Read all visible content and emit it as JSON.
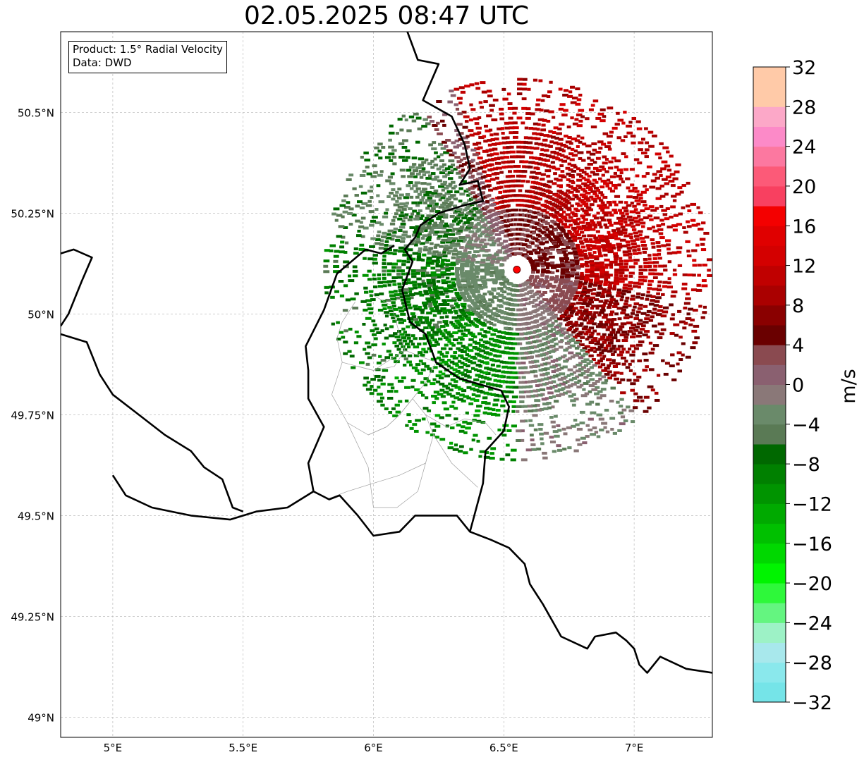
{
  "title": "02.05.2025 08:47 UTC",
  "info": {
    "product_line": "Product: 1.5° Radial Velocity",
    "data_line": "Data: DWD"
  },
  "map": {
    "lon_range": [
      4.8,
      7.3
    ],
    "lat_range": [
      48.95,
      50.7
    ],
    "lon_ticks": [
      {
        "v": 5.0,
        "label": "5°E"
      },
      {
        "v": 5.5,
        "label": "5.5°E"
      },
      {
        "v": 6.0,
        "label": "6°E"
      },
      {
        "v": 6.5,
        "label": "6.5°E"
      },
      {
        "v": 7.0,
        "label": "7°E"
      }
    ],
    "lat_ticks": [
      {
        "v": 49.0,
        "label": "49°N"
      },
      {
        "v": 49.25,
        "label": "49.25°N"
      },
      {
        "v": 49.5,
        "label": "49.5°N"
      },
      {
        "v": 49.75,
        "label": "49.75°N"
      },
      {
        "v": 50.0,
        "label": "50°N"
      },
      {
        "v": 50.25,
        "label": "50.25°N"
      },
      {
        "v": 50.5,
        "label": "50.5°N"
      }
    ],
    "radar_site": {
      "lon": 6.55,
      "lat": 50.11
    },
    "radar_marker_color": "#ff0000",
    "borders": [
      [
        [
          6.13,
          50.7
        ],
        [
          6.17,
          50.63
        ],
        [
          6.25,
          50.62
        ],
        [
          6.19,
          50.53
        ],
        [
          6.3,
          50.49
        ],
        [
          6.35,
          50.42
        ],
        [
          6.37,
          50.36
        ],
        [
          6.33,
          50.32
        ],
        [
          6.4,
          50.33
        ],
        [
          6.42,
          50.28
        ],
        [
          6.35,
          50.27
        ],
        [
          6.25,
          50.25
        ],
        [
          6.18,
          50.22
        ],
        [
          6.16,
          50.19
        ],
        [
          6.12,
          50.16
        ],
        [
          6.15,
          50.13
        ],
        [
          6.11,
          50.06
        ],
        [
          6.14,
          49.98
        ],
        [
          6.2,
          49.95
        ],
        [
          6.24,
          49.88
        ],
        [
          6.33,
          49.84
        ],
        [
          6.49,
          49.81
        ],
        [
          6.52,
          49.77
        ],
        [
          6.5,
          49.71
        ],
        [
          6.43,
          49.66
        ],
        [
          6.42,
          49.58
        ],
        [
          6.37,
          49.46
        ],
        [
          6.32,
          49.5
        ],
        [
          6.25,
          49.5
        ],
        [
          6.16,
          49.5
        ],
        [
          6.1,
          49.46
        ],
        [
          6.0,
          49.45
        ],
        [
          5.94,
          49.5
        ],
        [
          5.87,
          49.55
        ],
        [
          5.83,
          49.54
        ],
        [
          5.77,
          49.56
        ],
        [
          5.75,
          49.63
        ],
        [
          5.81,
          49.72
        ],
        [
          5.75,
          49.79
        ],
        [
          5.75,
          49.86
        ],
        [
          5.74,
          49.92
        ],
        [
          5.81,
          50.01
        ],
        [
          5.86,
          50.1
        ],
        [
          5.97,
          50.16
        ],
        [
          6.03,
          50.15
        ],
        [
          6.08,
          50.17
        ]
      ],
      [
        [
          5.0,
          49.6
        ],
        [
          5.05,
          49.55
        ],
        [
          5.15,
          49.52
        ],
        [
          5.3,
          49.5
        ],
        [
          5.45,
          49.49
        ],
        [
          5.55,
          49.51
        ],
        [
          5.67,
          49.52
        ],
        [
          5.77,
          49.56
        ]
      ],
      [
        [
          4.8,
          49.95
        ],
        [
          4.9,
          49.93
        ],
        [
          4.95,
          49.85
        ],
        [
          5.0,
          49.8
        ],
        [
          5.1,
          49.75
        ],
        [
          5.2,
          49.7
        ],
        [
          5.3,
          49.66
        ],
        [
          5.35,
          49.62
        ],
        [
          5.42,
          49.59
        ],
        [
          5.46,
          49.52
        ],
        [
          5.5,
          49.51
        ]
      ],
      [
        [
          4.8,
          50.15
        ],
        [
          4.85,
          50.16
        ],
        [
          4.92,
          50.14
        ],
        [
          4.88,
          50.08
        ],
        [
          4.83,
          50.0
        ],
        [
          4.8,
          49.97
        ]
      ],
      [
        [
          6.37,
          49.46
        ],
        [
          6.45,
          49.44
        ],
        [
          6.52,
          49.42
        ],
        [
          6.58,
          49.38
        ],
        [
          6.6,
          49.33
        ],
        [
          6.65,
          49.28
        ],
        [
          6.72,
          49.2
        ],
        [
          6.82,
          49.17
        ],
        [
          6.85,
          49.2
        ],
        [
          6.93,
          49.21
        ],
        [
          6.97,
          49.19
        ],
        [
          7.0,
          49.17
        ],
        [
          7.02,
          49.13
        ],
        [
          7.05,
          49.11
        ],
        [
          7.1,
          49.15
        ],
        [
          7.2,
          49.12
        ],
        [
          7.3,
          49.11
        ]
      ]
    ],
    "regions": [
      [
        [
          5.99,
          50.05
        ],
        [
          6.07,
          50.02
        ],
        [
          6.1,
          49.95
        ],
        [
          6.12,
          49.91
        ],
        [
          6.08,
          49.87
        ],
        [
          6.0,
          49.86
        ],
        [
          5.94,
          49.87
        ],
        [
          5.88,
          49.88
        ],
        [
          5.86,
          49.94
        ],
        [
          5.88,
          49.98
        ],
        [
          5.93,
          50.03
        ]
      ],
      [
        [
          5.88,
          49.88
        ],
        [
          5.84,
          49.8
        ],
        [
          5.9,
          49.73
        ],
        [
          5.98,
          49.7
        ],
        [
          6.05,
          49.72
        ],
        [
          6.1,
          49.75
        ],
        [
          6.15,
          49.79
        ],
        [
          6.2,
          49.83
        ],
        [
          6.24,
          49.88
        ],
        [
          6.12,
          49.91
        ],
        [
          6.0,
          49.86
        ],
        [
          5.94,
          49.87
        ]
      ],
      [
        [
          5.9,
          49.73
        ],
        [
          5.98,
          49.62
        ],
        [
          6.0,
          49.52
        ],
        [
          6.09,
          49.52
        ],
        [
          6.17,
          49.56
        ],
        [
          6.2,
          49.63
        ],
        [
          6.23,
          49.7
        ],
        [
          6.2,
          49.75
        ],
        [
          6.15,
          49.79
        ],
        [
          6.1,
          49.75
        ],
        [
          6.05,
          49.72
        ],
        [
          5.98,
          49.7
        ]
      ],
      [
        [
          6.2,
          49.75
        ],
        [
          6.28,
          49.72
        ],
        [
          6.35,
          49.74
        ],
        [
          6.43,
          49.73
        ],
        [
          6.47,
          49.7
        ]
      ],
      [
        [
          6.23,
          49.7
        ],
        [
          6.3,
          49.63
        ],
        [
          6.35,
          49.6
        ],
        [
          6.4,
          49.57
        ]
      ],
      [
        [
          5.82,
          49.54
        ],
        [
          5.9,
          49.56
        ],
        [
          6.0,
          49.58
        ],
        [
          6.1,
          49.6
        ],
        [
          6.2,
          49.63
        ]
      ]
    ],
    "velocity_field": {
      "max_range_deg": 0.48,
      "note": "Cell grid showing radial velocities; sectors listed as [azimuth_start_deg, azimuth_end_deg, velocity_m_s]",
      "sectors": [
        [
          -20,
          40,
          10
        ],
        [
          40,
          100,
          11
        ],
        [
          100,
          140,
          7
        ],
        [
          140,
          180,
          -2
        ],
        [
          180,
          230,
          -10
        ],
        [
          230,
          280,
          -8
        ],
        [
          280,
          330,
          -5
        ],
        [
          330,
          340,
          3
        ]
      ],
      "inner_gap_deg": 0.04
    }
  },
  "colorbar": {
    "unit": "m/s",
    "min": -32,
    "max": 32,
    "tick_labels": [
      "32",
      "28",
      "24",
      "20",
      "16",
      "12",
      "8",
      "4",
      "0",
      "−4",
      "−8",
      "−12",
      "−16",
      "−20",
      "−24",
      "−28",
      "−32"
    ],
    "tick_values": [
      32,
      28,
      24,
      20,
      16,
      12,
      8,
      4,
      0,
      -4,
      -8,
      -12,
      -16,
      -20,
      -24,
      -28,
      -32
    ],
    "colors_bottom_to_top": [
      "#75e4e8",
      "#8ae8ec",
      "#a8e8ec",
      "#9df2c6",
      "#64f580",
      "#2ef83a",
      "#00f400",
      "#00d800",
      "#00c000",
      "#00aa00",
      "#009400",
      "#008000",
      "#006800",
      "#5a7a55",
      "#6a8a6a",
      "#8a7878",
      "#8a6070",
      "#8a4a50",
      "#6a0000",
      "#8a0000",
      "#aa0000",
      "#c00000",
      "#d40000",
      "#e00000",
      "#f40000",
      "#f84060",
      "#fc5a78",
      "#fc78a0",
      "#fc8ac8",
      "#fca8c8",
      "#ffcaa8",
      "#ffcaa8"
    ]
  }
}
